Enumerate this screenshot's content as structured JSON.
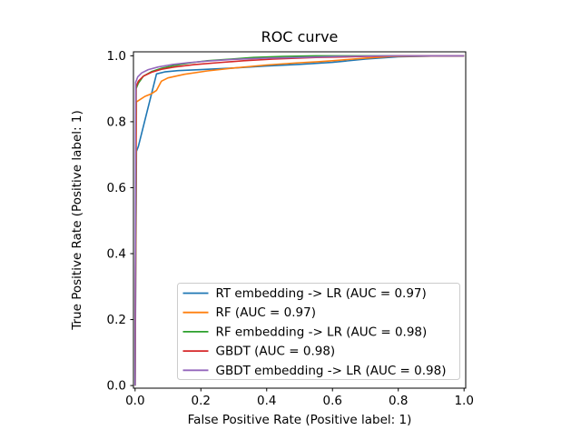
{
  "figure": {
    "background": "#ffffff",
    "axis_color": "#000000"
  },
  "chart_data": {
    "type": "line",
    "title": "ROC curve",
    "xlabel": "False Positive Rate (Positive label: 1)",
    "ylabel": "True Positive Rate (Positive label: 1)",
    "xlim": [
      -0.005,
      1.005
    ],
    "ylim": [
      -0.008,
      1.012
    ],
    "xticks": [
      0.0,
      0.2,
      0.4,
      0.6,
      0.8,
      1.0
    ],
    "yticks": [
      0.0,
      0.2,
      0.4,
      0.6,
      0.8,
      1.0
    ],
    "grid": false,
    "legend": {
      "position": "lower-center-right-inside",
      "frame": true,
      "frame_color": "#cccccc",
      "frame_fill": "rgba(255,255,255,0.8)"
    },
    "series": [
      {
        "id": "rt-embedding-lr",
        "name": "RT embedding -> LR (AUC = 0.97)",
        "color": "#1f77b4",
        "points": [
          [
            0,
            0
          ],
          [
            0.004,
            0.71
          ],
          [
            0.01,
            0.725
          ],
          [
            0.065,
            0.945
          ],
          [
            0.09,
            0.951
          ],
          [
            0.13,
            0.955
          ],
          [
            0.2,
            0.958
          ],
          [
            0.3,
            0.963
          ],
          [
            0.4,
            0.969
          ],
          [
            0.5,
            0.974
          ],
          [
            0.6,
            0.98
          ],
          [
            0.7,
            0.99
          ],
          [
            0.8,
            0.997
          ],
          [
            0.9,
            0.999
          ],
          [
            1,
            1
          ]
        ]
      },
      {
        "id": "rf",
        "name": "RF (AUC = 0.97)",
        "color": "#ff7f0e",
        "points": [
          [
            0,
            0
          ],
          [
            0.004,
            0.86
          ],
          [
            0.015,
            0.867
          ],
          [
            0.03,
            0.877
          ],
          [
            0.05,
            0.885
          ],
          [
            0.065,
            0.895
          ],
          [
            0.08,
            0.923
          ],
          [
            0.1,
            0.933
          ],
          [
            0.15,
            0.944
          ],
          [
            0.22,
            0.954
          ],
          [
            0.3,
            0.963
          ],
          [
            0.4,
            0.972
          ],
          [
            0.5,
            0.979
          ],
          [
            0.555,
            0.982
          ],
          [
            0.6,
            0.985
          ],
          [
            0.7,
            0.993
          ],
          [
            0.78,
            0.998
          ],
          [
            0.9,
            0.999
          ],
          [
            1,
            1
          ]
        ]
      },
      {
        "id": "rf-embedding-lr",
        "name": "RF embedding -> LR (AUC = 0.98)",
        "color": "#2ca02c",
        "points": [
          [
            0,
            0
          ],
          [
            0.003,
            0.9
          ],
          [
            0.01,
            0.917
          ],
          [
            0.025,
            0.938
          ],
          [
            0.05,
            0.952
          ],
          [
            0.08,
            0.962
          ],
          [
            0.12,
            0.971
          ],
          [
            0.17,
            0.979
          ],
          [
            0.22,
            0.985
          ],
          [
            0.29,
            0.99
          ],
          [
            0.36,
            0.995
          ],
          [
            0.45,
            0.998
          ],
          [
            0.55,
            1.0
          ],
          [
            1,
            1
          ]
        ]
      },
      {
        "id": "gbdt",
        "name": "GBDT (AUC = 0.98)",
        "color": "#d62728",
        "points": [
          [
            0,
            0
          ],
          [
            0.003,
            0.906
          ],
          [
            0.01,
            0.923
          ],
          [
            0.025,
            0.938
          ],
          [
            0.05,
            0.95
          ],
          [
            0.08,
            0.959
          ],
          [
            0.12,
            0.966
          ],
          [
            0.18,
            0.973
          ],
          [
            0.25,
            0.979
          ],
          [
            0.33,
            0.985
          ],
          [
            0.42,
            0.99
          ],
          [
            0.55,
            0.995
          ],
          [
            0.7,
            0.998
          ],
          [
            0.8,
            1.0
          ],
          [
            1,
            1
          ]
        ]
      },
      {
        "id": "gbdt-embedding-lr",
        "name": "GBDT embedding -> LR (AUC = 0.98)",
        "color": "#9467bd",
        "points": [
          [
            0,
            0
          ],
          [
            0.002,
            0.92
          ],
          [
            0.008,
            0.936
          ],
          [
            0.02,
            0.948
          ],
          [
            0.04,
            0.958
          ],
          [
            0.07,
            0.966
          ],
          [
            0.11,
            0.973
          ],
          [
            0.16,
            0.979
          ],
          [
            0.22,
            0.984
          ],
          [
            0.3,
            0.989
          ],
          [
            0.4,
            0.993
          ],
          [
            0.5,
            0.995
          ],
          [
            0.62,
            0.998
          ],
          [
            0.75,
            0.9995
          ],
          [
            1,
            1
          ]
        ]
      }
    ]
  }
}
